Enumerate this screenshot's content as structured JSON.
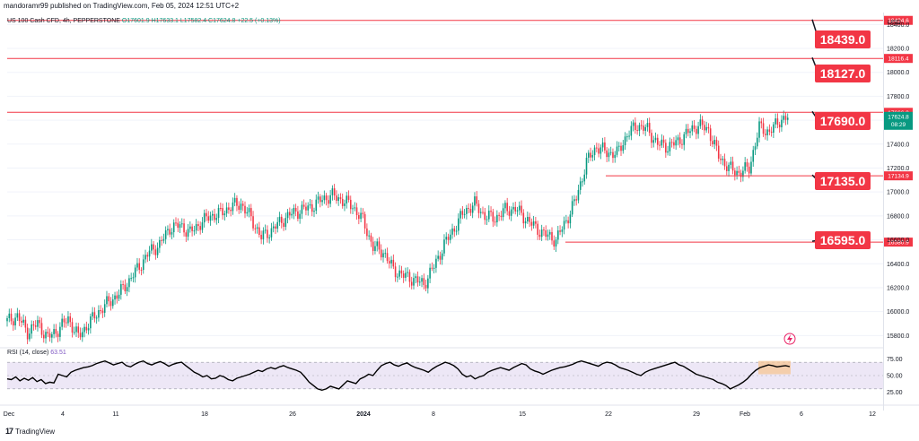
{
  "header": {
    "text": "mandoramr99 published on TradingView.com, Feb 05, 2024 12:51 UTC+2"
  },
  "symbol_info": {
    "name": "US 100 Cash CFD, 4h, PEPPERSTONE",
    "open": "O17601.9",
    "high": "H17633.1",
    "low": "L17582.4",
    "close": "C17624.8",
    "change": "+22.5 (+0.13%)"
  },
  "rsi": {
    "label": "RSI (14, close)",
    "value": "63.51",
    "ticks": [
      "75.00",
      "50.00",
      "25.00"
    ],
    "upper": 70,
    "lower": 30,
    "series": [
      45,
      44,
      48,
      42,
      46,
      43,
      47,
      41,
      44,
      38,
      40,
      39,
      52,
      50,
      48,
      55,
      58,
      60,
      62,
      63,
      65,
      68,
      70,
      72,
      69,
      66,
      68,
      70,
      65,
      63,
      67,
      70,
      72,
      68,
      66,
      69,
      71,
      68,
      64,
      67,
      69,
      70,
      65,
      60,
      55,
      52,
      48,
      50,
      45,
      46,
      50,
      48,
      44,
      42,
      46,
      48,
      50,
      52,
      55,
      58,
      56,
      60,
      62,
      60,
      63,
      65,
      62,
      60,
      58,
      55,
      48,
      40,
      35,
      30,
      28,
      30,
      34,
      32,
      30,
      36,
      42,
      40,
      38,
      45,
      48,
      52,
      50,
      58,
      65,
      68,
      70,
      66,
      64,
      67,
      69,
      65,
      62,
      60,
      58,
      55,
      60,
      64,
      67,
      70,
      68,
      65,
      60,
      52,
      48,
      50,
      45,
      48,
      50,
      55,
      58,
      60,
      62,
      60,
      58,
      62,
      65,
      68,
      66,
      60,
      57,
      55,
      52,
      55,
      58,
      60,
      62,
      63,
      65,
      67,
      70,
      72,
      70,
      68,
      66,
      64,
      68,
      70,
      69,
      66,
      62,
      60,
      58,
      55,
      52,
      50,
      55,
      58,
      60,
      62,
      64,
      66,
      68,
      70,
      66,
      64,
      60,
      56,
      52,
      50,
      48,
      46,
      44,
      40,
      38,
      35,
      30,
      33,
      36,
      40,
      45,
      52,
      58,
      62,
      64,
      66,
      65,
      63,
      64,
      65,
      63.51
    ]
  },
  "price_axis": {
    "currency": "USD",
    "ticks": [
      "18400.0",
      "18200.0",
      "18000.0",
      "17800.0",
      "17600.0",
      "17400.0",
      "17200.0",
      "17000.0",
      "16800.0",
      "16600.0",
      "16400.0",
      "16200.0",
      "16000.0",
      "15800.0"
    ],
    "last_price": "17624.8",
    "countdown": "08:29"
  },
  "levels": [
    {
      "label": "18439.0",
      "axis": "18434.6",
      "price": 18434.6
    },
    {
      "label": "18127.0",
      "axis": "18116.4",
      "price": 18116.4
    },
    {
      "label": "17690.0",
      "axis": "17666.0",
      "price": 17666.0
    },
    {
      "label": "17135.0",
      "axis": "17134.9",
      "price": 17134.9
    },
    {
      "label": "16595.0",
      "axis": "16580.9",
      "price": 16580.9
    }
  ],
  "time_axis": [
    "Dec",
    "4",
    "11",
    "18",
    "26",
    "2024",
    "8",
    "15",
    "22",
    "29",
    "Feb",
    "6",
    "12"
  ],
  "footer": {
    "brand": "TradingView",
    "logo": "17"
  },
  "colors": {
    "up": "#089981",
    "down": "#f23645",
    "level": "#f23645",
    "rsi": "#000000",
    "rsi_band": "#ede7f6"
  },
  "chart_data": {
    "type": "candlestick",
    "title": "US 100 Cash CFD, 4h, PEPPERSTONE",
    "y_range": [
      15720,
      18500
    ],
    "approx_close_path": [
      [
        0,
        15920
      ],
      [
        5,
        15960
      ],
      [
        10,
        15830
      ],
      [
        15,
        15900
      ],
      [
        20,
        15780
      ],
      [
        25,
        15850
      ],
      [
        30,
        15940
      ],
      [
        35,
        15790
      ],
      [
        40,
        15900
      ],
      [
        45,
        16000
      ],
      [
        50,
        16080
      ],
      [
        55,
        16150
      ],
      [
        60,
        16260
      ],
      [
        65,
        16380
      ],
      [
        70,
        16500
      ],
      [
        75,
        16560
      ],
      [
        80,
        16700
      ],
      [
        85,
        16720
      ],
      [
        90,
        16660
      ],
      [
        95,
        16740
      ],
      [
        100,
        16800
      ],
      [
        105,
        16820
      ],
      [
        110,
        16880
      ],
      [
        115,
        16900
      ],
      [
        120,
        16780
      ],
      [
        125,
        16620
      ],
      [
        130,
        16680
      ],
      [
        135,
        16760
      ],
      [
        140,
        16820
      ],
      [
        145,
        16850
      ],
      [
        150,
        16880
      ],
      [
        155,
        16940
      ],
      [
        160,
        16970
      ],
      [
        165,
        16930
      ],
      [
        170,
        16880
      ],
      [
        175,
        16760
      ],
      [
        180,
        16540
      ],
      [
        185,
        16500
      ],
      [
        190,
        16350
      ],
      [
        195,
        16300
      ],
      [
        200,
        16270
      ],
      [
        205,
        16230
      ],
      [
        210,
        16380
      ],
      [
        215,
        16560
      ],
      [
        220,
        16700
      ],
      [
        225,
        16840
      ],
      [
        230,
        16900
      ],
      [
        235,
        16800
      ],
      [
        240,
        16780
      ],
      [
        245,
        16850
      ],
      [
        250,
        16860
      ],
      [
        255,
        16780
      ],
      [
        260,
        16700
      ],
      [
        265,
        16640
      ],
      [
        270,
        16600
      ],
      [
        275,
        16760
      ],
      [
        280,
        16950
      ],
      [
        285,
        17250
      ],
      [
        290,
        17380
      ],
      [
        295,
        17330
      ],
      [
        300,
        17320
      ],
      [
        305,
        17480
      ],
      [
        310,
        17560
      ],
      [
        315,
        17520
      ],
      [
        320,
        17400
      ],
      [
        325,
        17380
      ],
      [
        330,
        17420
      ],
      [
        335,
        17500
      ],
      [
        340,
        17560
      ],
      [
        345,
        17520
      ],
      [
        350,
        17300
      ],
      [
        355,
        17200
      ],
      [
        360,
        17160
      ],
      [
        365,
        17200
      ],
      [
        370,
        17540
      ],
      [
        375,
        17500
      ],
      [
        380,
        17600
      ],
      [
        385,
        17625
      ]
    ]
  }
}
